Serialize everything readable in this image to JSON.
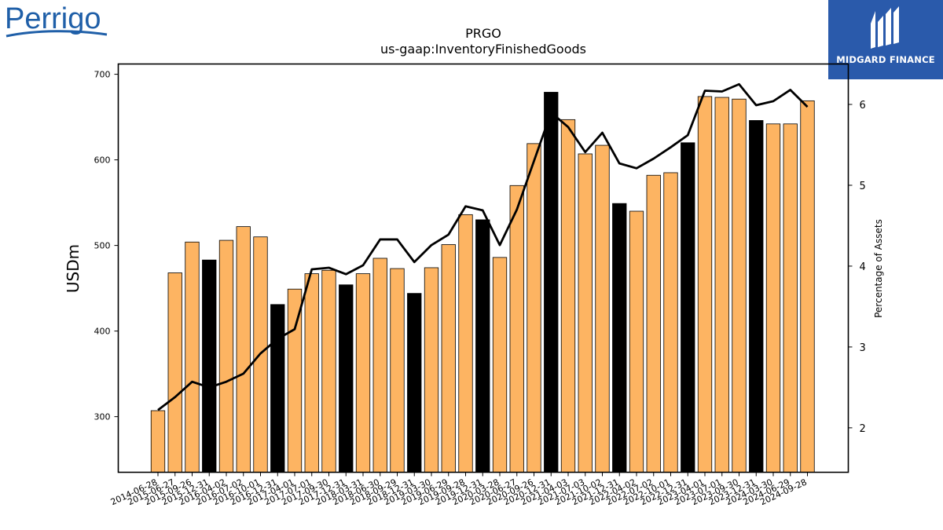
{
  "logos": {
    "left_text": "Perrigo",
    "right_text": "MIDGARD FINANCE",
    "right_bg_color": "#2a5aab",
    "left_text_color": "#1f5fa8"
  },
  "chart_data": {
    "type": "bar",
    "title": "PRGO",
    "subtitle": "us-gaap:InventoryFinishedGoods",
    "ylabel": "USDm",
    "y2label": "Percentage of Assets",
    "ylim": [
      235,
      712
    ],
    "y2lim": [
      1.45,
      6.5
    ],
    "yticks": [
      300,
      400,
      500,
      600,
      700
    ],
    "y2ticks": [
      2,
      3,
      4,
      5,
      6
    ],
    "colors": {
      "bar_default": "#fdb462",
      "bar_highlight": "#000000",
      "line": "#000000"
    },
    "categories": [
      "2014-06-28",
      "2015-06-27",
      "2015-09-26",
      "2015-12-31",
      "2016-04-02",
      "2016-07-02",
      "2016-10-01",
      "2016-12-31",
      "2017-04-01",
      "2017-07-01",
      "2017-09-30",
      "2017-12-31",
      "2018-03-31",
      "2018-06-30",
      "2018-09-29",
      "2018-12-31",
      "2019-03-30",
      "2019-06-29",
      "2019-09-28",
      "2019-12-31",
      "2020-03-28",
      "2020-06-27",
      "2020-09-26",
      "2020-12-31",
      "2021-04-03",
      "2021-07-03",
      "2021-10-02",
      "2021-12-31",
      "2022-04-02",
      "2022-07-02",
      "2022-10-01",
      "2022-12-31",
      "2023-04-01",
      "2023-07-01",
      "2023-09-30",
      "2023-12-31",
      "2024-03-30",
      "2024-06-29",
      "2024-09-28"
    ],
    "series": [
      {
        "type": "bar",
        "values": [
          307,
          468,
          504,
          483,
          506,
          522,
          510,
          431,
          449,
          467,
          471,
          454,
          467,
          485,
          473,
          444,
          474,
          501,
          536,
          530,
          486,
          570,
          619,
          679,
          647,
          607,
          617,
          549,
          540,
          582,
          585,
          620,
          674,
          673,
          671,
          646,
          642,
          642,
          669
        ],
        "highlight": [
          false,
          false,
          false,
          true,
          false,
          false,
          false,
          true,
          false,
          false,
          false,
          true,
          false,
          false,
          false,
          true,
          false,
          false,
          false,
          true,
          false,
          false,
          false,
          true,
          false,
          false,
          false,
          true,
          false,
          false,
          false,
          true,
          false,
          false,
          false,
          true,
          false,
          false,
          false
        ]
      },
      {
        "type": "line",
        "axis": "right",
        "values": [
          2.22,
          2.38,
          2.57,
          2.5,
          2.57,
          2.67,
          2.92,
          3.1,
          3.22,
          3.96,
          3.98,
          3.9,
          4.01,
          4.33,
          4.33,
          4.05,
          4.26,
          4.39,
          4.74,
          4.69,
          4.26,
          4.7,
          5.3,
          5.9,
          5.72,
          5.41,
          5.65,
          5.27,
          5.21,
          5.33,
          5.47,
          5.62,
          6.17,
          6.16,
          6.25,
          5.99,
          6.04,
          6.18,
          5.97
        ]
      }
    ]
  }
}
